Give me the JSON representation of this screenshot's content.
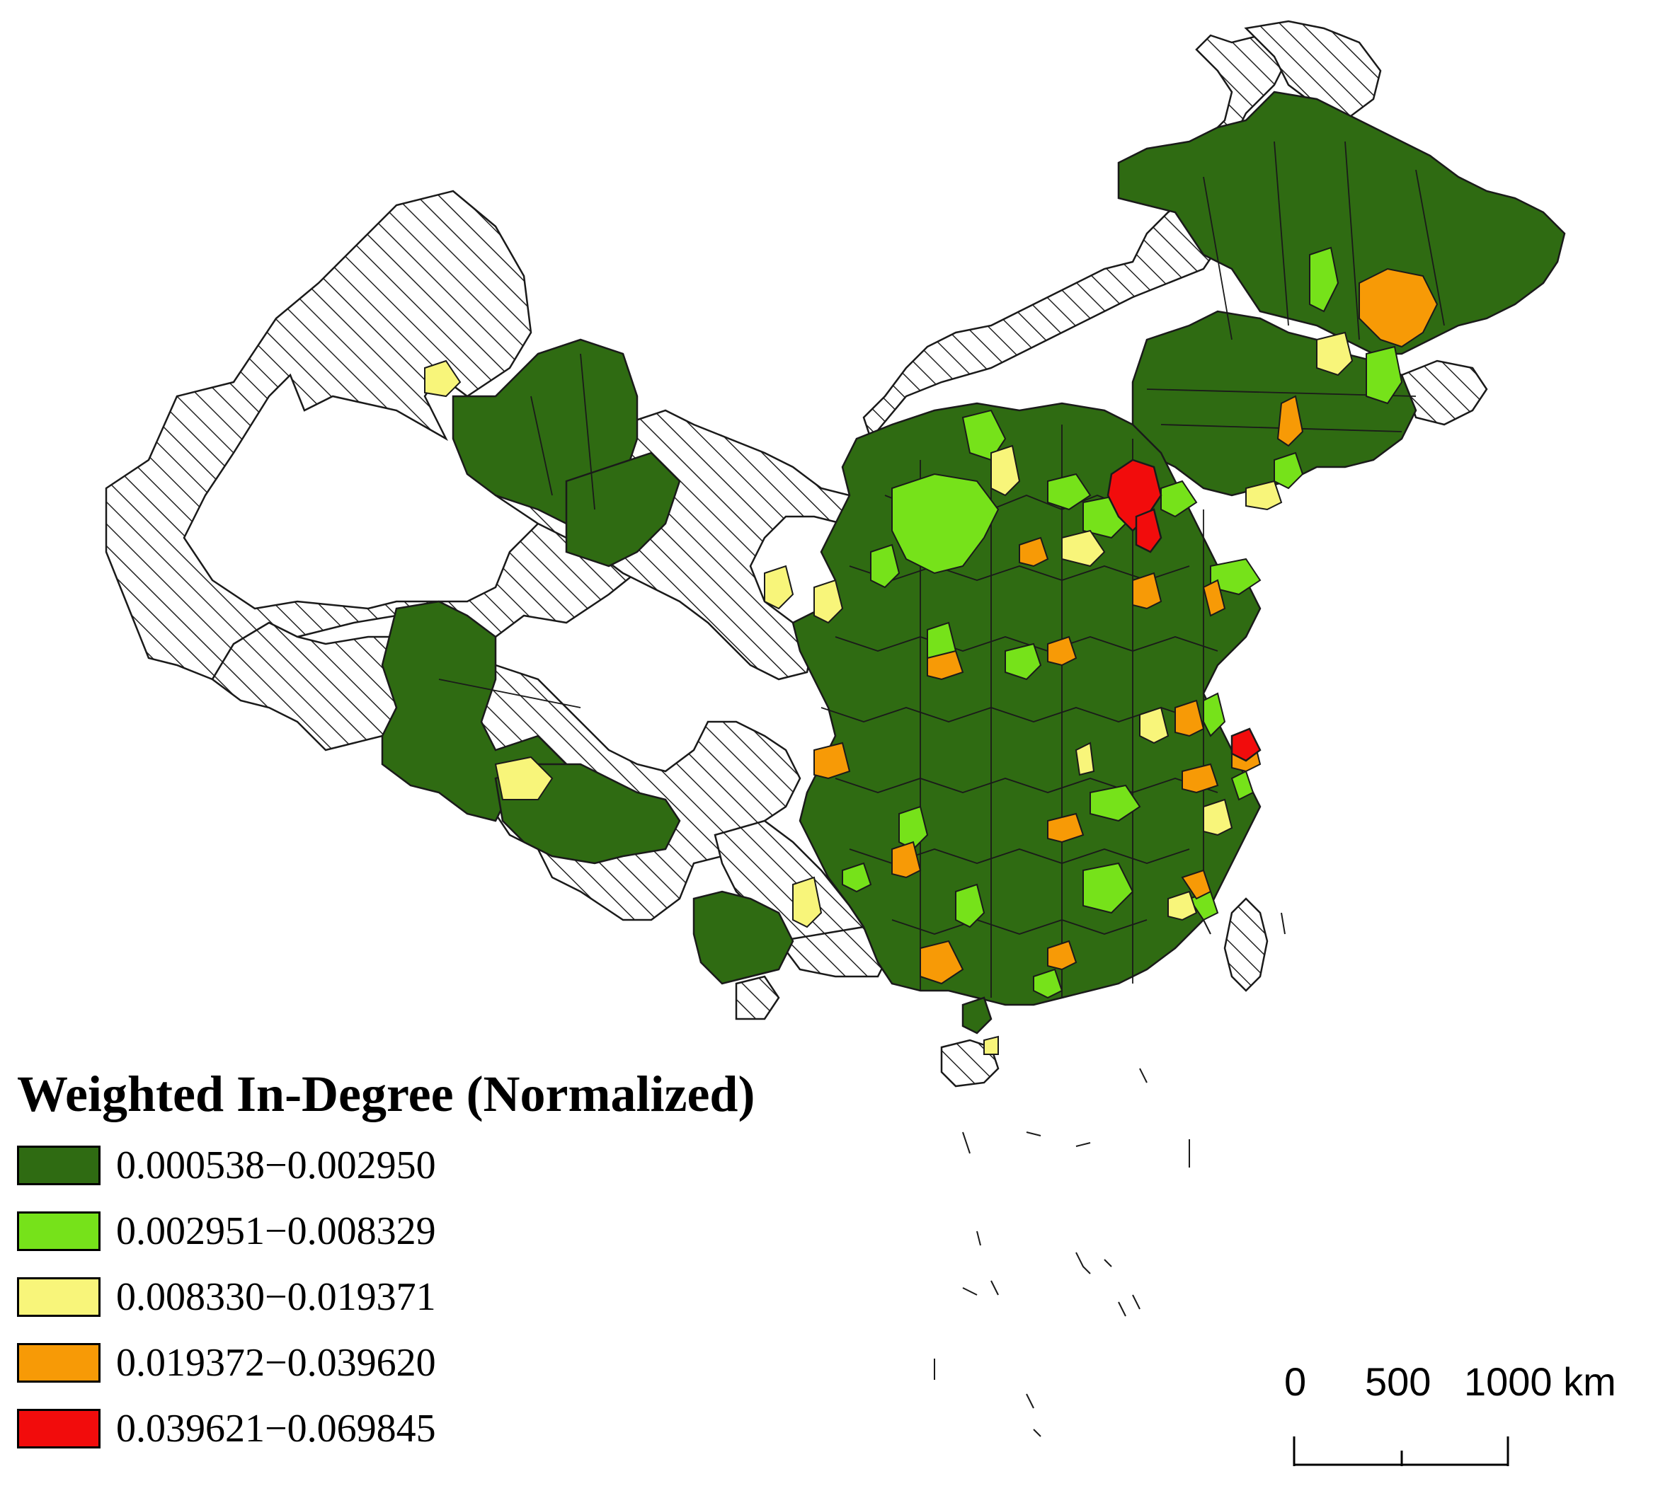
{
  "legend": {
    "title": "Weighted In-Degree (Normalized)",
    "classes": [
      {
        "label": "0.000538−0.002950",
        "color": "#2f6b12"
      },
      {
        "label": "0.002951−0.008329",
        "color": "#76e21a"
      },
      {
        "label": "0.008330−0.019371",
        "color": "#f8f57a"
      },
      {
        "label": "0.019372−0.039620",
        "color": "#f79a06"
      },
      {
        "label": "0.039621−0.069845",
        "color": "#f20c0c"
      }
    ],
    "no_data_pattern": "diagonal-hatch"
  },
  "scale_bar": {
    "ticks": [
      "0",
      "500",
      "1000 km"
    ]
  },
  "colors": {
    "background": "#ffffff",
    "outline": "#1a1a1a",
    "hatch": "#222222"
  }
}
